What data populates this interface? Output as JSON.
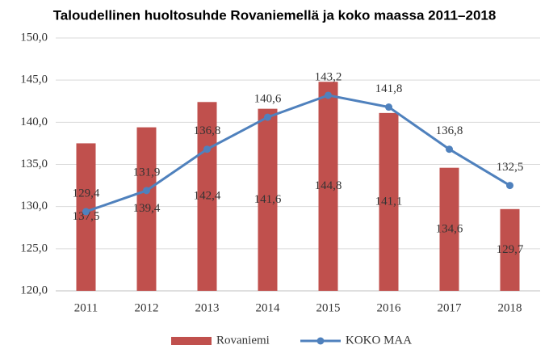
{
  "chart_data": {
    "type": "combo",
    "title": "Taloudellinen huoltosuhde Rovaniemellä ja koko maassa 2011–2018",
    "categories": [
      "2011",
      "2012",
      "2013",
      "2014",
      "2015",
      "2016",
      "2017",
      "2018"
    ],
    "series": [
      {
        "name": "Rovaniemi",
        "type": "bar",
        "color": "#c0504d",
        "values": [
          137.5,
          139.4,
          142.4,
          141.6,
          144.8,
          141.1,
          134.6,
          129.7
        ],
        "value_labels": [
          "137,5",
          "139,4",
          "142,4",
          "141,6",
          "144,8",
          "141,1",
          "134,6",
          "129,7"
        ]
      },
      {
        "name": "KOKO MAA",
        "type": "line",
        "color": "#4f81bd",
        "values": [
          129.4,
          131.9,
          136.8,
          140.6,
          143.2,
          141.8,
          136.8,
          132.5
        ],
        "value_labels": [
          "129,4",
          "131,9",
          "136,8",
          "140,6",
          "143,2",
          "141,8",
          "136,8",
          "132,5"
        ]
      }
    ],
    "ylim": [
      120,
      150
    ],
    "yticks": [
      {
        "value": 120,
        "label": "120,0"
      },
      {
        "value": 125,
        "label": "125,0"
      },
      {
        "value": 130,
        "label": "130,0"
      },
      {
        "value": 135,
        "label": "135,0"
      },
      {
        "value": 140,
        "label": "140,0"
      },
      {
        "value": 145,
        "label": "145,0"
      },
      {
        "value": 150,
        "label": "150,0"
      }
    ],
    "grid": true,
    "legend": "bottom"
  }
}
